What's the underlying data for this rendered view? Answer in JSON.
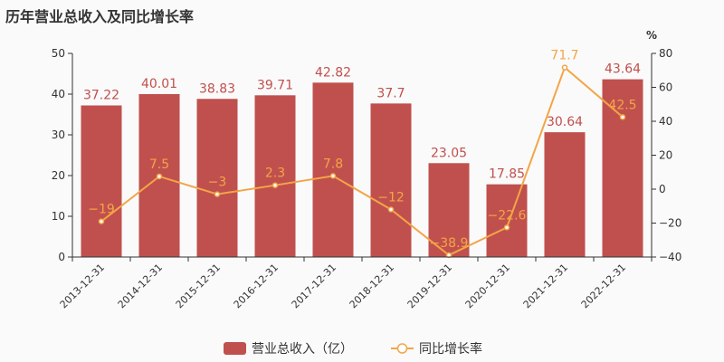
{
  "chart_data": {
    "type": "bar",
    "title": "历年营业总收入及同比增长率",
    "categories": [
      "2013-12-31",
      "2014-12-31",
      "2015-12-31",
      "2016-12-31",
      "2017-12-31",
      "2018-12-31",
      "2019-12-31",
      "2020-12-31",
      "2021-12-31",
      "2022-12-31"
    ],
    "series": [
      {
        "name": "营业总收入（亿）",
        "type": "bar",
        "axis": "left",
        "color": "#c0504d",
        "values": [
          37.22,
          40.01,
          38.83,
          39.71,
          42.82,
          37.7,
          23.05,
          17.85,
          30.64,
          43.64
        ],
        "labels": [
          "37.22",
          "40.01",
          "38.83",
          "39.71",
          "42.82",
          "37.7",
          "23.05",
          "17.85",
          "30.64",
          "43.64"
        ]
      },
      {
        "name": "同比增长率",
        "type": "line",
        "axis": "right",
        "color": "#f3a547",
        "values": [
          -19,
          7.5,
          -3,
          2.3,
          7.8,
          -12,
          -38.9,
          -22.6,
          71.7,
          42.5
        ],
        "labels": [
          "−19",
          "7.5",
          "−3",
          "2.3",
          "7.8",
          "−12",
          "−38.9",
          "−22.6",
          "71.7",
          "42.5"
        ]
      }
    ],
    "left_axis": {
      "min": 0,
      "max": 50,
      "ticks": [
        "0",
        "10",
        "20",
        "30",
        "40",
        "50"
      ]
    },
    "right_axis": {
      "min": -40,
      "max": 80,
      "unit": "%",
      "ticks": [
        "−40",
        "−20",
        "0",
        "20",
        "40",
        "60",
        "80"
      ]
    },
    "grid": false,
    "legend_position": "bottom-center"
  }
}
